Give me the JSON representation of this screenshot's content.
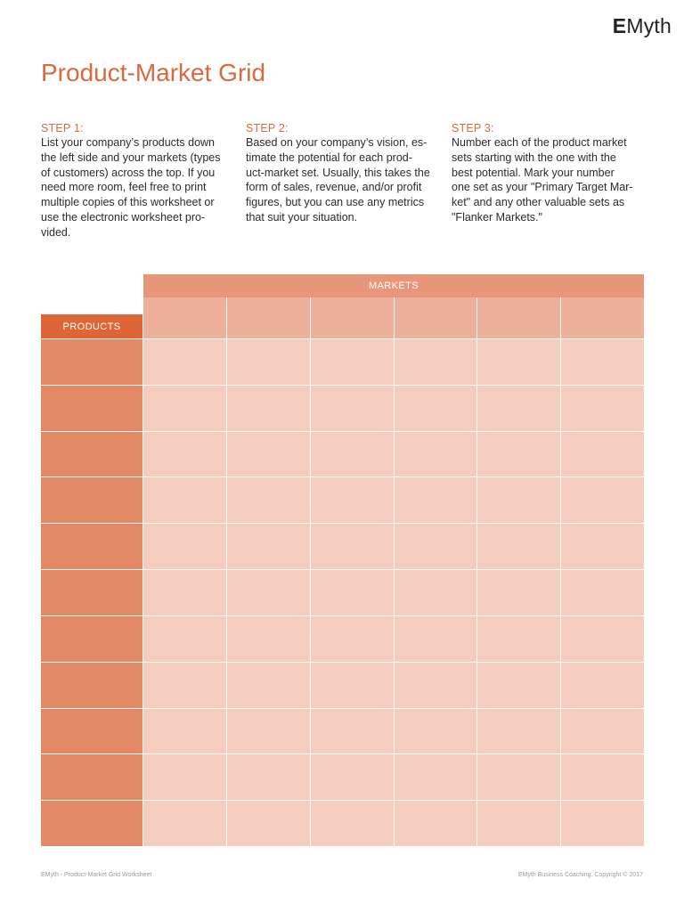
{
  "brand": {
    "logo_bold": "E",
    "logo_rest": "Myth"
  },
  "page": {
    "title": "Product-Market Grid"
  },
  "steps": [
    {
      "label": "STEP 1:",
      "text": "List your company’s products down\nthe left side and your markets (types\nof customers) across the top. If you\nneed more room, feel free to print\nmultiple copies of this worksheet or\nuse the electronic worksheet pro-\nvided."
    },
    {
      "label": "STEP 2:",
      "text": "Based on your company’s vision, es-\ntimate the potential for each prod-\nuct-market set. Usually, this takes the\nform of sales, revenue, and/or profit\nfigures, but you can use any metrics\nthat suit your situation."
    },
    {
      "label": "STEP 3:",
      "text": "Number each of the product market\nsets starting with the one with the\nbest potential. Mark your number\none set as your \"Primary Target Mar-\nket\" and any other valuable sets as\n\"Flanker Markets.\""
    }
  ],
  "grid": {
    "markets_label": "MARKETS",
    "products_label": "PRODUCTS",
    "market_columns": 6,
    "product_rows": 11
  },
  "footer": {
    "left": "EMyth - Product-Market Grid Worksheet",
    "right": "EMyth Business Coaching. Copyright © 2017"
  },
  "colors": {
    "accent": "#d96a3f",
    "markets_header": "#e8967a",
    "market_cell": "#eeb09a",
    "products_header": "#de6536",
    "product_cell": "#e48965",
    "grid_cell": "#f4cdbf"
  }
}
